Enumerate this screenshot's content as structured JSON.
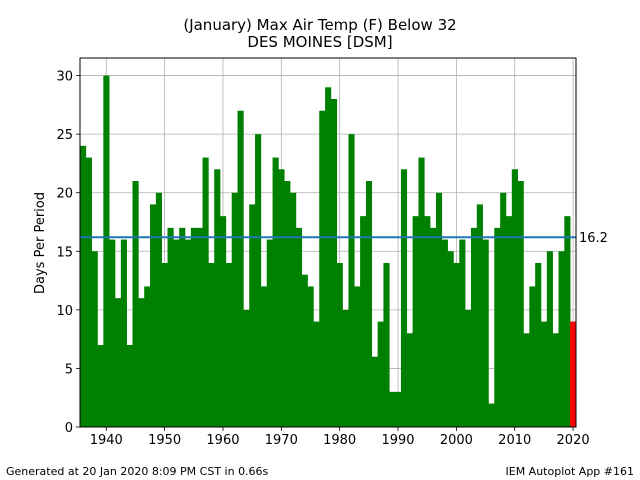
{
  "title_lines": [
    "(January) Max Air Temp (F) Below 32",
    "DES MOINES [DSM]"
  ],
  "footer_left": "Generated at 20 Jan 2020 8:09 PM CST in 0.66s",
  "footer_right": "IEM Autoplot App #161",
  "chart_data": {
    "type": "bar",
    "title": "(January) Max Air Temp (F) Below 32",
    "subtitle": "DES MOINES [DSM]",
    "xlabel": "",
    "ylabel": "Days Per Period",
    "xlim": [
      1935.5,
      2020.5
    ],
    "ylim": [
      0,
      31.5
    ],
    "xticks": [
      1940,
      1950,
      1960,
      1970,
      1980,
      1990,
      2000,
      2010,
      2020
    ],
    "yticks": [
      0,
      5,
      10,
      15,
      20,
      25,
      30
    ],
    "grid": true,
    "x": [
      1936,
      1937,
      1938,
      1939,
      1940,
      1941,
      1942,
      1943,
      1944,
      1945,
      1946,
      1947,
      1948,
      1949,
      1950,
      1951,
      1952,
      1953,
      1954,
      1955,
      1956,
      1957,
      1958,
      1959,
      1960,
      1961,
      1962,
      1963,
      1964,
      1965,
      1966,
      1967,
      1968,
      1969,
      1970,
      1971,
      1972,
      1973,
      1974,
      1975,
      1976,
      1977,
      1978,
      1979,
      1980,
      1981,
      1982,
      1983,
      1984,
      1985,
      1986,
      1987,
      1988,
      1989,
      1990,
      1991,
      1992,
      1993,
      1994,
      1995,
      1996,
      1997,
      1998,
      1999,
      2000,
      2001,
      2002,
      2003,
      2004,
      2005,
      2006,
      2007,
      2008,
      2009,
      2010,
      2011,
      2012,
      2013,
      2014,
      2015,
      2016,
      2017,
      2018,
      2019,
      2020
    ],
    "values": [
      24,
      23,
      15,
      7,
      30,
      16,
      11,
      16,
      7,
      21,
      11,
      12,
      19,
      20,
      14,
      17,
      16,
      17,
      16,
      17,
      17,
      23,
      14,
      22,
      18,
      14,
      20,
      27,
      10,
      19,
      25,
      12,
      16,
      23,
      22,
      21,
      20,
      17,
      13,
      12,
      9,
      27,
      29,
      28,
      14,
      10,
      25,
      12,
      18,
      21,
      6,
      9,
      14,
      3,
      3,
      22,
      8,
      18,
      23,
      18,
      17,
      20,
      16,
      15,
      14,
      16,
      10,
      17,
      19,
      16,
      2,
      17,
      20,
      18,
      22,
      21,
      8,
      12,
      14,
      9,
      15,
      8,
      15,
      18,
      9
    ],
    "bar_color": "#008000",
    "highlight_x": 2020,
    "highlight_color": "#ff0000",
    "mean": 16.2,
    "mean_label": "16.2",
    "mean_color": "#1f77b4"
  }
}
